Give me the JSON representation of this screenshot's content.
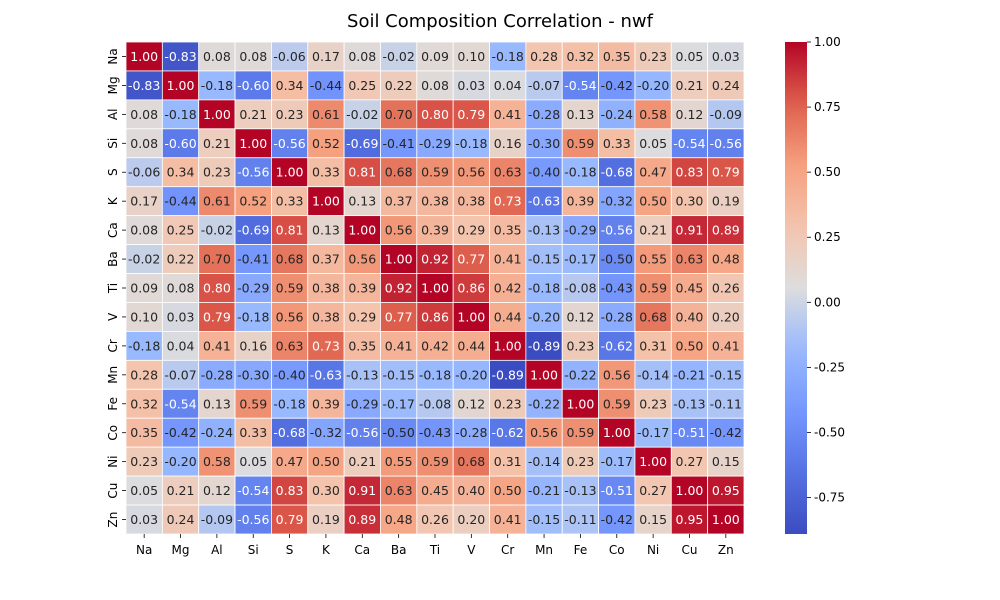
{
  "chart_data": {
    "type": "heatmap",
    "title": "Soil Composition Correlation - nwf",
    "labels": [
      "Na",
      "Mg",
      "Al",
      "Si",
      "S",
      "K",
      "Ca",
      "Ba",
      "Ti",
      "V",
      "Cr",
      "Mn",
      "Fe",
      "Co",
      "Ni",
      "Cu",
      "Zn"
    ],
    "matrix": [
      [
        1.0,
        -0.83,
        0.08,
        0.08,
        -0.06,
        0.17,
        0.08,
        -0.02,
        0.09,
        0.1,
        -0.18,
        0.28,
        0.32,
        0.35,
        0.23,
        0.05,
        0.03
      ],
      [
        -0.83,
        1.0,
        -0.18,
        -0.6,
        0.34,
        -0.44,
        0.25,
        0.22,
        0.08,
        0.03,
        0.04,
        -0.07,
        -0.54,
        -0.42,
        -0.2,
        0.21,
        0.24
      ],
      [
        0.08,
        -0.18,
        1.0,
        0.21,
        0.23,
        0.61,
        -0.02,
        0.7,
        0.8,
        0.79,
        0.41,
        -0.28,
        0.13,
        -0.24,
        0.58,
        0.12,
        -0.09
      ],
      [
        0.08,
        -0.6,
        0.21,
        1.0,
        -0.56,
        0.52,
        -0.69,
        -0.41,
        -0.29,
        -0.18,
        0.16,
        -0.3,
        0.59,
        0.33,
        0.05,
        -0.54,
        -0.56
      ],
      [
        -0.06,
        0.34,
        0.23,
        -0.56,
        1.0,
        0.33,
        0.81,
        0.68,
        0.59,
        0.56,
        0.63,
        -0.4,
        -0.18,
        -0.68,
        0.47,
        0.83,
        0.79
      ],
      [
        0.17,
        -0.44,
        0.61,
        0.52,
        0.33,
        1.0,
        0.13,
        0.37,
        0.38,
        0.38,
        0.73,
        -0.63,
        0.39,
        -0.32,
        0.5,
        0.3,
        0.19
      ],
      [
        0.08,
        0.25,
        -0.02,
        -0.69,
        0.81,
        0.13,
        1.0,
        0.56,
        0.39,
        0.29,
        0.35,
        -0.13,
        -0.29,
        -0.56,
        0.21,
        0.91,
        0.89
      ],
      [
        -0.02,
        0.22,
        0.7,
        -0.41,
        0.68,
        0.37,
        0.56,
        1.0,
        0.92,
        0.77,
        0.41,
        -0.15,
        -0.17,
        -0.5,
        0.55,
        0.63,
        0.48
      ],
      [
        0.09,
        0.08,
        0.8,
        -0.29,
        0.59,
        0.38,
        0.39,
        0.92,
        1.0,
        0.86,
        0.42,
        -0.18,
        -0.08,
        -0.43,
        0.59,
        0.45,
        0.26
      ],
      [
        0.1,
        0.03,
        0.79,
        -0.18,
        0.56,
        0.38,
        0.29,
        0.77,
        0.86,
        1.0,
        0.44,
        -0.2,
        0.12,
        -0.28,
        0.68,
        0.4,
        0.2
      ],
      [
        -0.18,
        0.04,
        0.41,
        0.16,
        0.63,
        0.73,
        0.35,
        0.41,
        0.42,
        0.44,
        1.0,
        -0.89,
        0.23,
        -0.62,
        0.31,
        0.5,
        0.41
      ],
      [
        0.28,
        -0.07,
        -0.28,
        -0.3,
        -0.4,
        -0.63,
        -0.13,
        -0.15,
        -0.18,
        -0.2,
        -0.89,
        1.0,
        -0.22,
        0.56,
        -0.14,
        -0.21,
        -0.15
      ],
      [
        0.32,
        -0.54,
        0.13,
        0.59,
        -0.18,
        0.39,
        -0.29,
        -0.17,
        -0.08,
        0.12,
        0.23,
        -0.22,
        1.0,
        0.59,
        0.23,
        -0.13,
        -0.11
      ],
      [
        0.35,
        -0.42,
        -0.24,
        0.33,
        -0.68,
        -0.32,
        -0.56,
        -0.5,
        -0.43,
        -0.28,
        -0.62,
        0.56,
        0.59,
        1.0,
        -0.17,
        -0.51,
        -0.42
      ],
      [
        0.23,
        -0.2,
        0.58,
        0.05,
        0.47,
        0.5,
        0.21,
        0.55,
        0.59,
        0.68,
        0.31,
        -0.14,
        0.23,
        -0.17,
        1.0,
        0.27,
        0.15
      ],
      [
        0.05,
        0.21,
        0.12,
        -0.54,
        0.83,
        0.3,
        0.91,
        0.63,
        0.45,
        0.4,
        0.5,
        -0.21,
        -0.13,
        -0.51,
        0.27,
        1.0,
        0.95
      ],
      [
        0.03,
        0.24,
        -0.09,
        -0.56,
        0.79,
        0.19,
        0.89,
        0.48,
        0.26,
        0.2,
        0.41,
        -0.15,
        -0.11,
        -0.42,
        0.15,
        0.95,
        1.0
      ]
    ],
    "colormap": "coolwarm",
    "vmin": -0.89,
    "vmax": 1.0,
    "colorbar_ticks": [
      "1.00",
      "0.75",
      "0.50",
      "0.25",
      "0.00",
      "-0.25",
      "-0.50",
      "-0.75"
    ],
    "colorbar_tick_values": [
      1.0,
      0.75,
      0.5,
      0.25,
      0.0,
      -0.25,
      -0.5,
      -0.75
    ],
    "annotation_format": "0.00",
    "grid": false
  }
}
